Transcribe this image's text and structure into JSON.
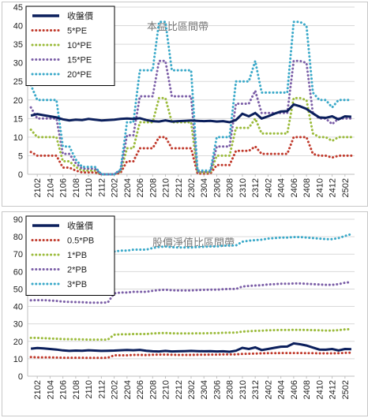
{
  "chart_data": [
    {
      "type": "line",
      "title": "本益比區間帶",
      "ylim": [
        0,
        45
      ],
      "yticks": [
        0,
        5,
        10,
        15,
        20,
        25,
        30,
        35,
        40,
        45
      ],
      "grid": true,
      "legend": "top-left",
      "x": [
        "2101",
        "2102",
        "2103",
        "2104",
        "2105",
        "2106",
        "2107",
        "2108",
        "2109",
        "2110",
        "2111",
        "2112",
        "2201",
        "2202",
        "2203",
        "2204",
        "2205",
        "2206",
        "2207",
        "2208",
        "2209",
        "2210",
        "2211",
        "2212",
        "2301",
        "2302",
        "2303",
        "2304",
        "2305",
        "2306",
        "2307",
        "2308",
        "2309",
        "2310",
        "2311",
        "2312",
        "2401",
        "2402",
        "2403",
        "2404",
        "2405",
        "2406",
        "2407",
        "2408",
        "2409",
        "2410",
        "2411",
        "2412",
        "2501",
        "2502",
        "2503"
      ],
      "xtick_labels": [
        "2102",
        "2104",
        "2106",
        "2108",
        "2110",
        "2112",
        "2202",
        "2204",
        "2206",
        "2208",
        "2210",
        "2212",
        "2302",
        "2304",
        "2306",
        "2308",
        "2310",
        "2312",
        "2402",
        "2404",
        "2406",
        "2408",
        "2410",
        "2412",
        "2502"
      ],
      "series": [
        {
          "name": "收盤價",
          "color": "#0b1f5c",
          "style": "solid",
          "values": [
            15.8,
            16.2,
            15.9,
            15.6,
            15.3,
            14.8,
            14.5,
            14.7,
            14.6,
            14.9,
            14.7,
            14.5,
            14.6,
            14.7,
            14.9,
            15.0,
            14.9,
            15.1,
            14.6,
            14.3,
            14.2,
            14.5,
            14.2,
            14.3,
            14.4,
            14.5,
            14.4,
            14.3,
            14.4,
            14.2,
            14.3,
            14.0,
            14.6,
            16.3,
            15.6,
            16.5,
            15.0,
            15.6,
            16.3,
            16.9,
            17.0,
            18.8,
            18.3,
            17.6,
            16.4,
            15.3,
            15.2,
            15.6,
            14.8,
            15.6,
            15.5
          ]
        },
        {
          "name": "5*PE",
          "color": "#c0392b",
          "style": "dotted",
          "values": [
            6,
            5,
            5,
            5,
            5,
            1.8,
            1.8,
            1,
            0.5,
            0.5,
            0.5,
            0,
            0,
            0,
            0.4,
            3.5,
            3.5,
            7,
            7,
            7,
            10,
            10,
            7,
            7,
            7,
            7,
            0.2,
            0.2,
            0.2,
            2.5,
            2.5,
            2.5,
            6.3,
            6.3,
            6.3,
            7.5,
            5.5,
            5.5,
            5.5,
            5.5,
            5.5,
            10,
            10,
            10,
            5.5,
            5,
            5,
            4.5,
            5,
            5,
            5
          ]
        },
        {
          "name": "10*PE",
          "color": "#9bbb3b",
          "style": "dotted",
          "values": [
            12,
            10,
            10,
            10,
            10,
            3.5,
            3.5,
            2,
            1,
            1,
            1,
            0,
            0,
            0,
            0.7,
            7,
            7,
            14,
            14,
            14,
            20.5,
            20.5,
            14,
            14,
            14,
            14,
            0.5,
            0.5,
            0.5,
            5,
            5,
            5,
            12.5,
            12.5,
            12.5,
            15,
            11,
            11,
            11,
            11,
            11,
            20.5,
            20.5,
            20,
            11,
            10,
            10,
            9,
            10,
            10,
            10
          ]
        },
        {
          "name": "15*PE",
          "color": "#7b5ea7",
          "style": "dotted",
          "values": [
            18,
            15,
            15,
            15,
            15,
            5.5,
            5.5,
            3,
            1.5,
            1.5,
            1.5,
            0,
            0,
            0,
            1,
            10.5,
            10.5,
            21,
            21,
            21,
            30.5,
            30.5,
            21,
            21,
            21,
            21,
            0.7,
            0.7,
            0.7,
            7.5,
            7.5,
            7.5,
            19,
            19,
            19,
            22.5,
            16.5,
            16.5,
            16.5,
            16.5,
            16.5,
            30.5,
            30.5,
            30,
            16.5,
            15,
            15,
            13.5,
            15,
            15,
            15
          ]
        },
        {
          "name": "20*PE",
          "color": "#3aa9c9",
          "style": "dotted",
          "values": [
            24,
            20,
            20,
            20,
            20,
            7.5,
            7.5,
            4,
            2,
            2,
            2,
            0,
            0,
            0,
            1.3,
            14,
            14,
            28,
            28,
            28,
            41,
            41,
            28,
            28,
            28,
            28,
            1,
            1,
            1,
            10,
            10,
            10,
            25,
            25,
            25,
            30.5,
            22,
            22,
            22,
            22,
            22,
            41,
            41,
            40,
            22,
            20,
            20,
            18,
            20,
            20,
            20
          ]
        }
      ]
    },
    {
      "type": "line",
      "title": "股價淨值比區間帶",
      "ylim": [
        0,
        90
      ],
      "yticks": [
        0,
        10,
        20,
        30,
        40,
        50,
        60,
        70,
        80,
        90
      ],
      "grid": true,
      "legend": "top-left",
      "x": [
        "2101",
        "2102",
        "2103",
        "2104",
        "2105",
        "2106",
        "2107",
        "2108",
        "2109",
        "2110",
        "2111",
        "2112",
        "2201",
        "2202",
        "2203",
        "2204",
        "2205",
        "2206",
        "2207",
        "2208",
        "2209",
        "2210",
        "2211",
        "2212",
        "2301",
        "2302",
        "2303",
        "2304",
        "2305",
        "2306",
        "2307",
        "2308",
        "2309",
        "2310",
        "2311",
        "2312",
        "2401",
        "2402",
        "2403",
        "2404",
        "2405",
        "2406",
        "2407",
        "2408",
        "2409",
        "2410",
        "2411",
        "2412",
        "2501",
        "2502",
        "2503"
      ],
      "xtick_labels": [
        "2102",
        "2104",
        "2106",
        "2108",
        "2110",
        "2112",
        "2202",
        "2204",
        "2206",
        "2208",
        "2210",
        "2212",
        "2302",
        "2304",
        "2306",
        "2308",
        "2310",
        "2312",
        "2402",
        "2404",
        "2406",
        "2408",
        "2410",
        "2412",
        "2502"
      ],
      "series": [
        {
          "name": "收盤價",
          "color": "#0b1f5c",
          "style": "solid",
          "values": [
            15.8,
            16.2,
            15.9,
            15.6,
            15.3,
            14.8,
            14.5,
            14.7,
            14.6,
            14.9,
            14.7,
            14.5,
            14.6,
            14.7,
            14.9,
            15.0,
            14.9,
            15.1,
            14.6,
            14.3,
            14.2,
            14.5,
            14.2,
            14.3,
            14.4,
            14.5,
            14.4,
            14.3,
            14.4,
            14.2,
            14.3,
            14.0,
            14.6,
            16.3,
            15.6,
            16.5,
            15.0,
            15.6,
            16.3,
            16.9,
            17.0,
            18.8,
            18.3,
            17.6,
            16.4,
            15.3,
            15.2,
            15.6,
            14.8,
            15.6,
            15.5
          ]
        },
        {
          "name": "0.5*PB",
          "color": "#c0392b",
          "style": "dotted",
          "values": [
            11,
            10.8,
            10.8,
            10.8,
            10.7,
            10.6,
            10.6,
            10.6,
            10.6,
            10.5,
            10.5,
            10.5,
            10.6,
            12,
            12,
            12,
            12.2,
            12.2,
            12.1,
            12.3,
            12.4,
            12.4,
            12.3,
            12.2,
            12.2,
            12.2,
            12.3,
            12.3,
            12.4,
            12.4,
            12.5,
            12.5,
            12.5,
            12.8,
            12.9,
            13,
            13.1,
            13.2,
            13.2,
            13.3,
            13.3,
            13.3,
            13.3,
            13.2,
            13.2,
            13.1,
            13.1,
            13.1,
            13.2,
            13.4,
            13.5
          ]
        },
        {
          "name": "1*PB",
          "color": "#9bbb3b",
          "style": "dotted",
          "values": [
            22,
            22,
            21.8,
            21.6,
            21.5,
            21.3,
            21.2,
            21.2,
            21.1,
            21,
            21,
            21,
            21,
            23.8,
            24,
            24,
            24.2,
            24.2,
            24.2,
            24.5,
            24.7,
            24.8,
            24.6,
            24.5,
            24.5,
            24.5,
            24.6,
            24.6,
            24.7,
            24.7,
            24.9,
            25,
            25,
            25.6,
            25.8,
            26,
            26.1,
            26.3,
            26.4,
            26.5,
            26.5,
            26.6,
            26.6,
            26.5,
            26.4,
            26.3,
            26.2,
            26.2,
            26.4,
            26.8,
            27
          ]
        },
        {
          "name": "2*PB",
          "color": "#7b5ea7",
          "style": "dotted",
          "values": [
            43.5,
            43.6,
            43.6,
            43.4,
            43.2,
            42.8,
            42.6,
            42.5,
            42.4,
            42.2,
            42.2,
            42.2,
            42.3,
            47.5,
            48,
            48,
            48.4,
            48.4,
            48.4,
            49,
            49.4,
            49.6,
            49.3,
            49.2,
            49.2,
            49.2,
            49.4,
            49.5,
            49.6,
            49.6,
            49.9,
            50,
            50,
            51.4,
            51.8,
            52,
            52.2,
            52.6,
            52.8,
            53,
            53,
            53.2,
            53.2,
            53,
            52.8,
            52.6,
            52.4,
            52.4,
            52.8,
            53.6,
            54
          ]
        },
        {
          "name": "3*PB",
          "color": "#3aa9c9",
          "style": "dotted",
          "values": [
            65,
            65.4,
            65.4,
            65,
            64.8,
            64.2,
            63.9,
            63.7,
            63.6,
            63.3,
            63.3,
            63.3,
            63.5,
            71.5,
            72,
            72,
            72.6,
            72.6,
            72.6,
            73.5,
            74.1,
            74.4,
            74,
            73.8,
            73.8,
            73.8,
            74.1,
            74.2,
            74.4,
            74.4,
            74.8,
            75,
            75,
            77.1,
            77.7,
            78,
            78.3,
            78.9,
            79.2,
            79.5,
            79.5,
            79.8,
            79.8,
            79.5,
            79.2,
            78.9,
            78.6,
            78.6,
            79.2,
            80.4,
            81.5
          ]
        }
      ]
    }
  ]
}
